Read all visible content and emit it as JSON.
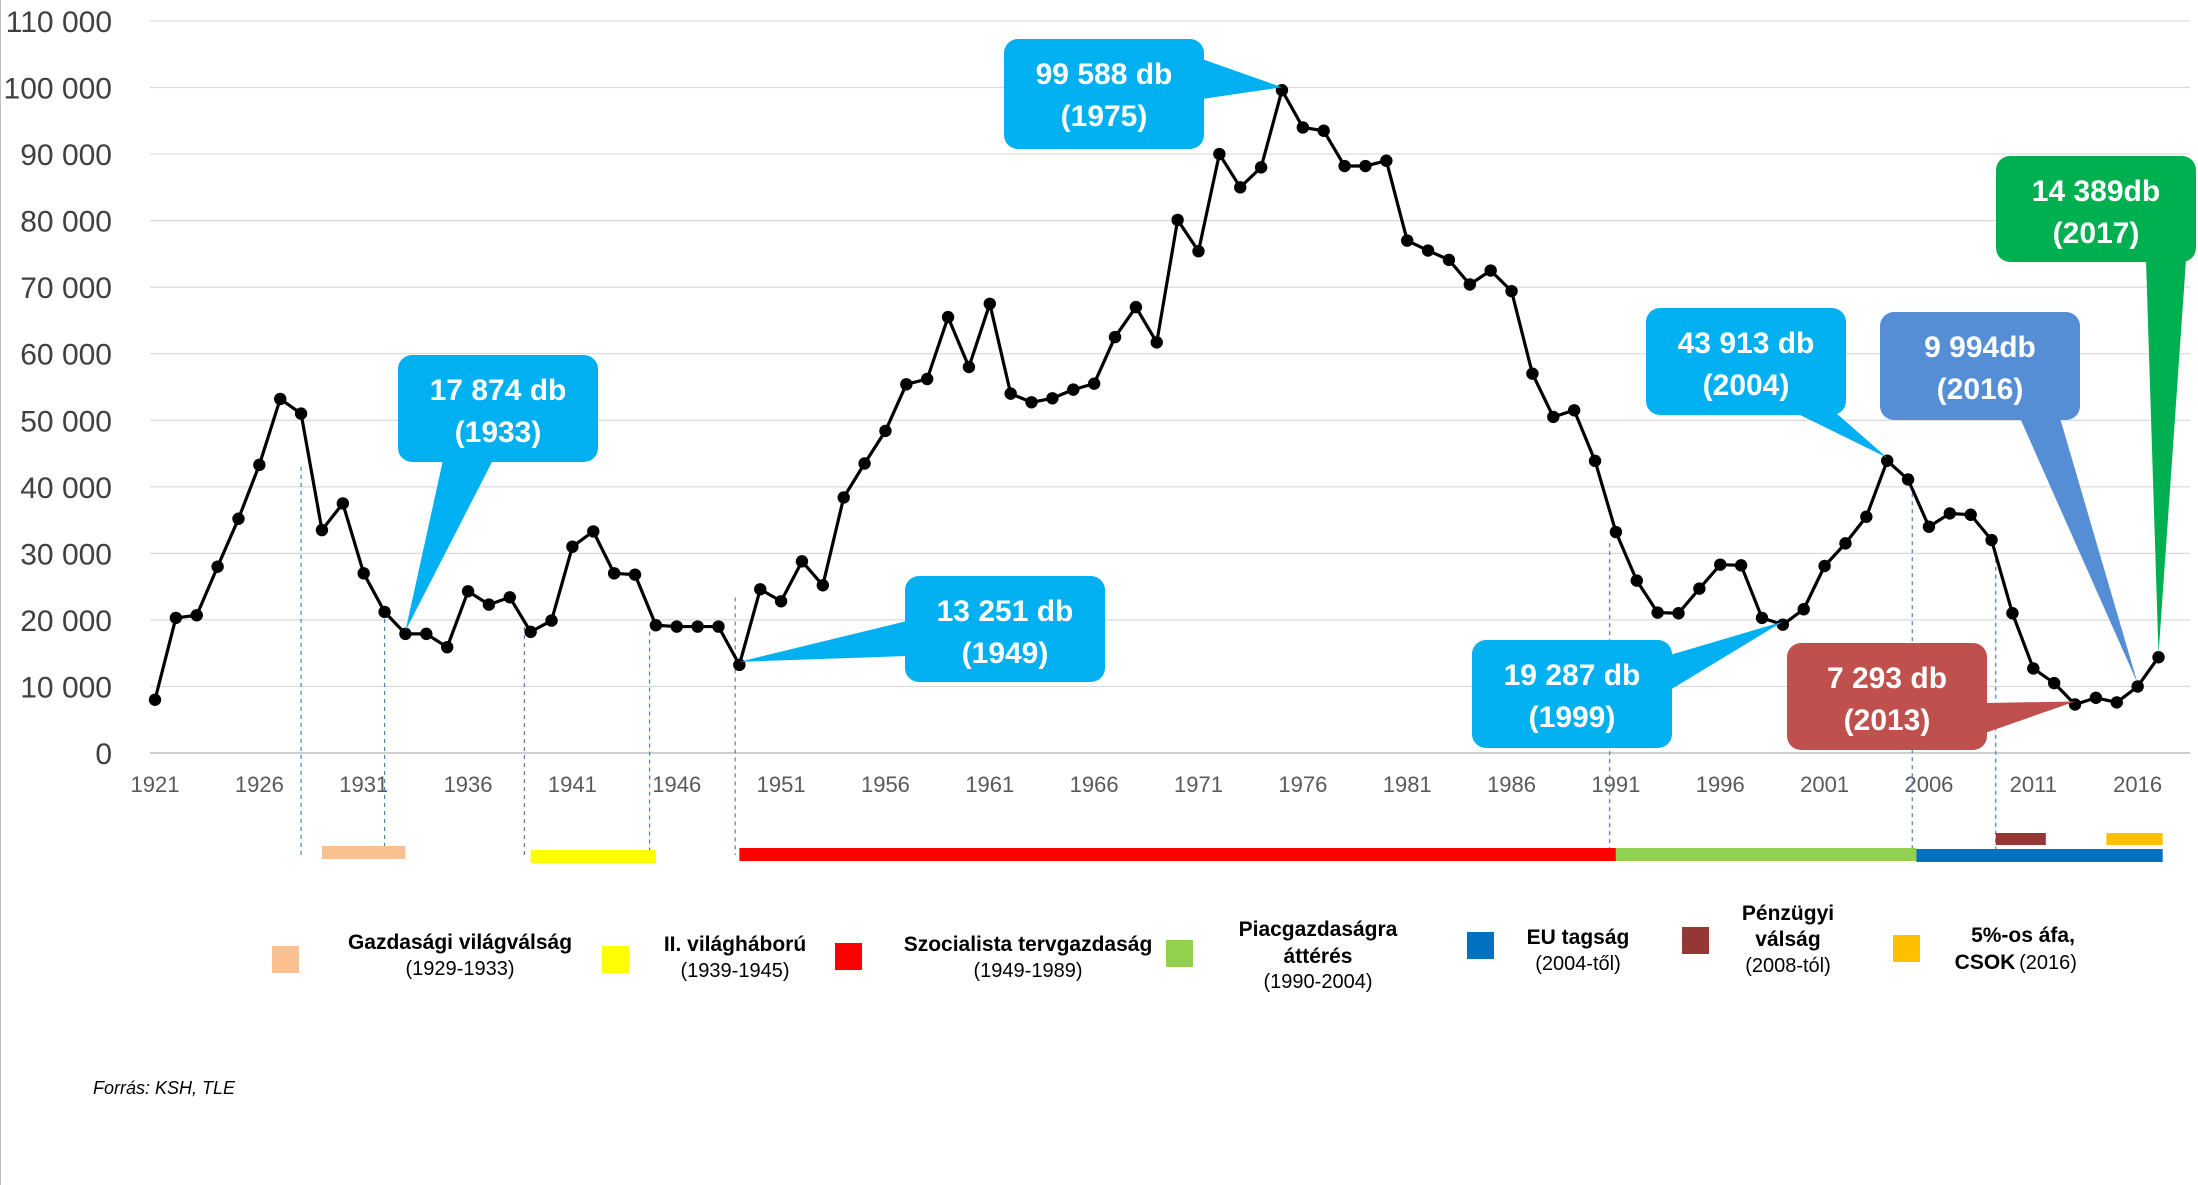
{
  "chart_data": {
    "type": "line",
    "x_start": 1921,
    "x_end": 2017,
    "ylim": [
      0,
      110000
    ],
    "yticks": [
      "0",
      "10 000",
      "20 000",
      "30 000",
      "40 000",
      "50 000",
      "60 000",
      "70 000",
      "80 000",
      "90 000",
      "100 000",
      "110 000"
    ],
    "xticks": [
      "1921",
      "1926",
      "1931",
      "1936",
      "1941",
      "1946",
      "1951",
      "1956",
      "1961",
      "1966",
      "1971",
      "1976",
      "1981",
      "1986",
      "1991",
      "1996",
      "2001",
      "2006",
      "2011",
      "2016"
    ],
    "grid": true,
    "series": [
      {
        "color": "#000000",
        "values": [
          8000,
          20300,
          20700,
          28000,
          35200,
          43300,
          53200,
          51000,
          33500,
          37500,
          27000,
          21200,
          17900,
          17900,
          15900,
          24300,
          22300,
          23400,
          18200,
          19900,
          31000,
          33300,
          27000,
          26800,
          19200,
          19000,
          19000,
          19000,
          13251,
          24600,
          22800,
          28800,
          25200,
          38400,
          43500,
          48400,
          55400,
          56200,
          65500,
          58000,
          67500,
          54000,
          52700,
          53300,
          54600,
          55500,
          62500,
          67000,
          61700,
          80100,
          75400,
          90000,
          85000,
          88000,
          99588,
          94000,
          93500,
          88200,
          88200,
          89000,
          77000,
          75500,
          74100,
          70400,
          72500,
          69400,
          57000,
          50500,
          51500,
          43900,
          33200,
          25900,
          21100,
          21000,
          24700,
          28300,
          28200,
          20300,
          19287,
          21600,
          28100,
          31500,
          35500,
          43913,
          41100,
          34000,
          36000,
          35800,
          32000,
          21000,
          12700,
          10500,
          7293,
          8300,
          7600,
          9994,
          14389
        ]
      }
    ],
    "callouts": [
      {
        "line1": "17 874 db",
        "line2": "(1933)",
        "year": 1933,
        "color": "#00B0F0"
      },
      {
        "line1": "13 251 db",
        "line2": "(1949)",
        "year": 1949,
        "color": "#00B0F0"
      },
      {
        "line1": "99 588 db",
        "line2": "(1975)",
        "year": 1975,
        "color": "#00B0F0"
      },
      {
        "line1": "19 287 db",
        "line2": "(1999)",
        "year": 1999,
        "color": "#00B0F0"
      },
      {
        "line1": "43 913 db",
        "line2": "(2004)",
        "year": 2004,
        "color": "#00B0F0"
      },
      {
        "line1": "9 994db",
        "line2": "(2016)",
        "year": 2016,
        "color": "#558ED5"
      },
      {
        "line1": "7 293 db",
        "line2": "(2013)",
        "year": 2013,
        "color": "#C0504D"
      },
      {
        "line1": "14 389db",
        "line2": "(2017)",
        "year": 2017,
        "color": "#00B050"
      }
    ],
    "periods": [
      {
        "start": 1929,
        "end": 1933,
        "color": "#FAC090",
        "title": "Gazdasági világválság",
        "sub": "(1929-1933)"
      },
      {
        "start": 1939,
        "end": 1945,
        "color": "#FFFF00",
        "title": "II. világháború",
        "sub": "(1939-1945)"
      },
      {
        "start": 1949,
        "end": 1991,
        "color": "#FF0000",
        "title": "Szocialista tervgazdaság",
        "sub": "(1949-1989)"
      },
      {
        "start": 1991,
        "end": 2005.4,
        "color": "#92D050",
        "title2": [
          "Piacgazdaságra",
          "áttérés"
        ],
        "sub": "(1990-2004)"
      },
      {
        "start": 2005.4,
        "end": 2017.2,
        "color": "#0070C0",
        "title": "EU tagság",
        "sub": "(2004-től)"
      },
      {
        "start": 2009.2,
        "end": 2011.6,
        "color": "#953735",
        "title2": [
          "Pénzügyi",
          "válság"
        ],
        "sub": "(2008-tól)"
      },
      {
        "start": 2014.5,
        "end": 2017.2,
        "color": "#FFC000",
        "title": "5%-os áfa,",
        "title_b": "CSOK",
        "sub_inline": "(2016)"
      }
    ],
    "source": "Forrás: KSH, TLE"
  }
}
